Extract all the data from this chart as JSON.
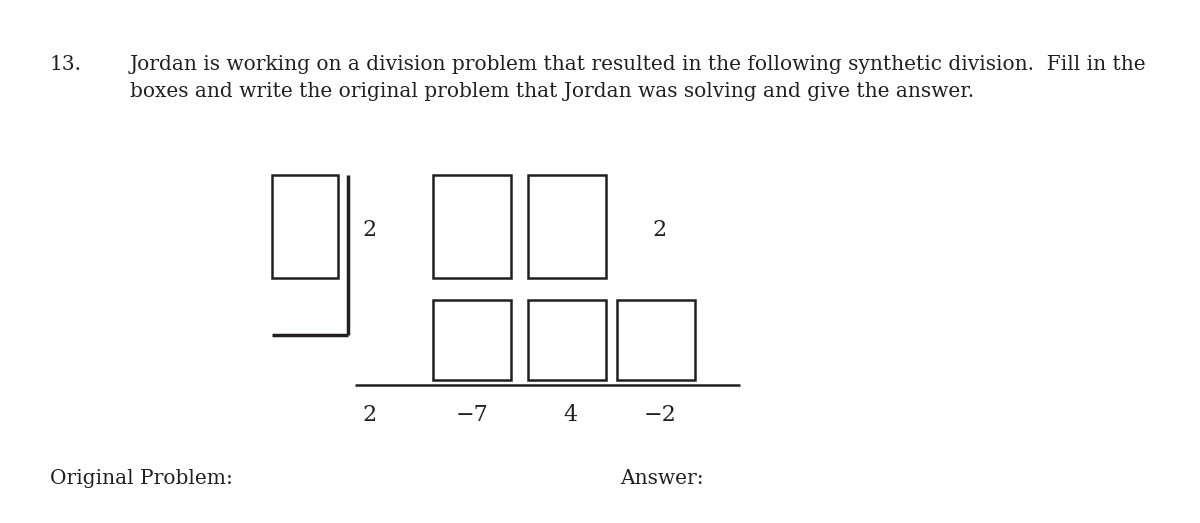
{
  "problem_number": "13.",
  "text_line1": "Jordan is working on a division problem that resulted in the following synthetic division.  Fill in the",
  "text_line2": "boxes and write the original problem that Jordan was solving and give the answer.",
  "number_2_after_bar": "2",
  "number_2_top_right": "2",
  "bottom_row": [
    "2",
    "−7",
    "4",
    "−2"
  ],
  "label_left": "Original Problem:",
  "label_right": "Answer:",
  "bg_color": "#ffffff",
  "text_color": "#231f20",
  "box_color": "#231f20",
  "font_size_text": 14.5,
  "font_size_numbers": 16,
  "font_size_labels": 14.5
}
